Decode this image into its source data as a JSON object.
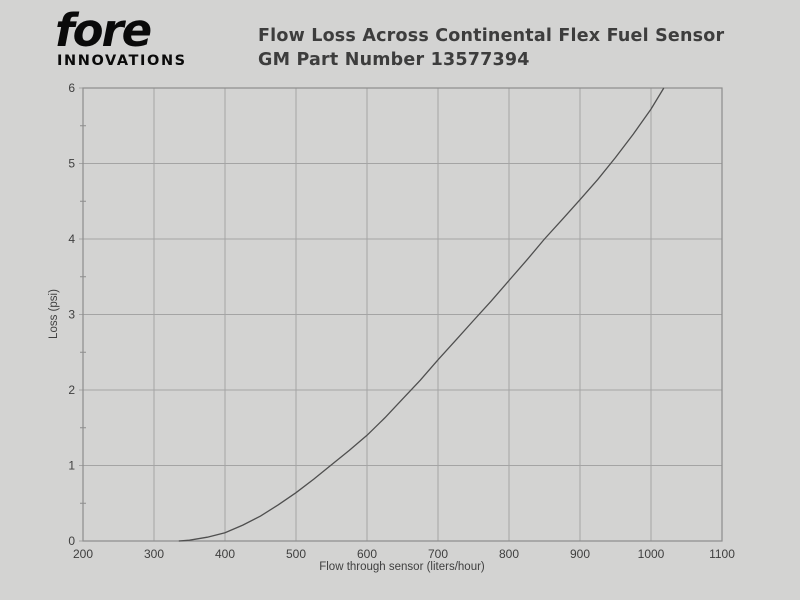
{
  "logo": {
    "brand": "fore",
    "subtext": "INNOVATIONS"
  },
  "title": {
    "line1": "Flow Loss Across Continental Flex Fuel Sensor",
    "line2": "GM Part Number 13577394"
  },
  "chart_data": {
    "type": "line",
    "title": "Flow Loss Across Continental Flex Fuel Sensor GM Part Number 13577394",
    "xlabel": "Flow through sensor (liters/hour)",
    "ylabel": "Loss (psi)",
    "xlim": [
      200,
      1100
    ],
    "ylim": [
      0,
      6
    ],
    "xticks": [
      200,
      300,
      400,
      500,
      600,
      700,
      800,
      900,
      1000,
      1100
    ],
    "yticks": [
      0,
      1,
      2,
      3,
      4,
      5,
      6
    ],
    "y_minor_ticks": [
      0.5,
      1.5,
      2.5,
      3.5,
      4.5,
      5.5
    ],
    "grid": true,
    "legend": "none",
    "series": [
      {
        "name": "flow-loss-curve",
        "points": [
          [
            335,
            0.0
          ],
          [
            350,
            0.01
          ],
          [
            375,
            0.05
          ],
          [
            400,
            0.11
          ],
          [
            425,
            0.21
          ],
          [
            450,
            0.33
          ],
          [
            475,
            0.48
          ],
          [
            500,
            0.64
          ],
          [
            525,
            0.82
          ],
          [
            550,
            1.01
          ],
          [
            575,
            1.2
          ],
          [
            600,
            1.4
          ],
          [
            625,
            1.63
          ],
          [
            650,
            1.88
          ],
          [
            675,
            2.13
          ],
          [
            700,
            2.4
          ],
          [
            725,
            2.66
          ],
          [
            750,
            2.92
          ],
          [
            775,
            3.18
          ],
          [
            800,
            3.45
          ],
          [
            825,
            3.72
          ],
          [
            850,
            4.0
          ],
          [
            875,
            4.26
          ],
          [
            900,
            4.52
          ],
          [
            925,
            4.79
          ],
          [
            950,
            5.08
          ],
          [
            975,
            5.39
          ],
          [
            1000,
            5.72
          ],
          [
            1018,
            6.0
          ]
        ]
      }
    ],
    "colors": {
      "background": "#d3d3d2",
      "grid": "#a4a4a4",
      "axis": "#8d8d8d",
      "curve": "#4f4f4f",
      "text": "#3f3f3f"
    }
  }
}
